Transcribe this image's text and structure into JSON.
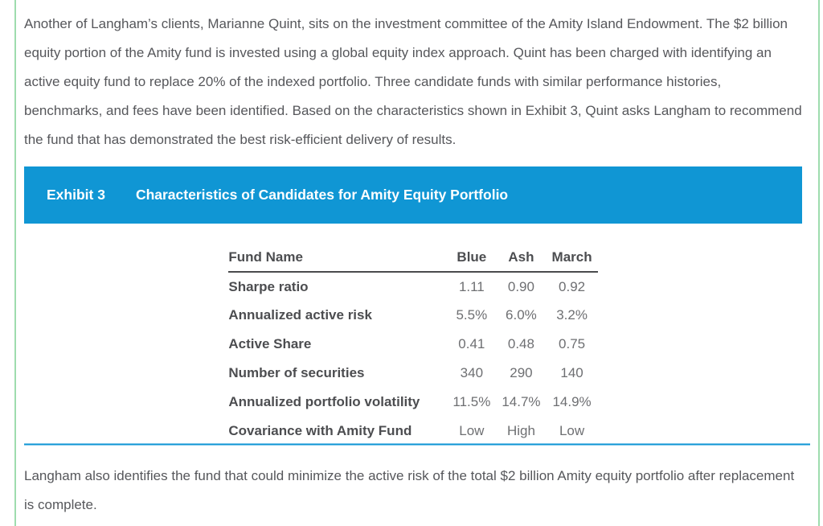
{
  "page": {
    "intro_paragraph": "Another of Langham’s clients, Marianne Quint, sits on the investment committee of the Amity Island Endowment. The $2 billion equity portion of the Amity fund is invested using a global equity index approach. Quint has been charged with identifying an active equity fund to replace 20% of the indexed portfolio. Three candidate funds with similar performance histories, benchmarks, and fees have been identified. Based on the characteristics shown in Exhibit 3, Quint asks Langham to recommend the fund that has demonstrated the best risk-efficient delivery of results.",
    "closing_paragraph": "Langham also identifies the fund that could minimize the active risk of the total $2 billion Amity equity portfolio after replacement is complete."
  },
  "exhibit": {
    "label": "Exhibit 3",
    "title": "Characteristics of Candidates for Amity Equity Portfolio"
  },
  "table": {
    "header": [
      "Fund Name",
      "Blue",
      "Ash",
      "March"
    ],
    "rows": [
      {
        "label": "Sharpe ratio",
        "values": [
          "1.11",
          "0.90",
          "0.92"
        ]
      },
      {
        "label": "Annualized active risk",
        "values": [
          "5.5%",
          "6.0%",
          "3.2%"
        ]
      },
      {
        "label": "Active Share",
        "values": [
          "0.41",
          "0.48",
          "0.75"
        ]
      },
      {
        "label": "Number of securities",
        "values": [
          "340",
          "290",
          "140"
        ]
      },
      {
        "label": "Annualized portfolio volatility",
        "values": [
          "11.5%",
          "14.7%",
          "14.9%"
        ]
      },
      {
        "label": "Covariance with Amity Fund",
        "values": [
          "Low",
          "High",
          "Low"
        ]
      }
    ]
  },
  "colors": {
    "accent_blue": "#1096d4",
    "border_green": "#9edcae",
    "body_text": "#56575b",
    "table_label_text": "#4c4d50",
    "table_value_text": "#6e6f72",
    "header_rule": "#4a4b4d"
  }
}
